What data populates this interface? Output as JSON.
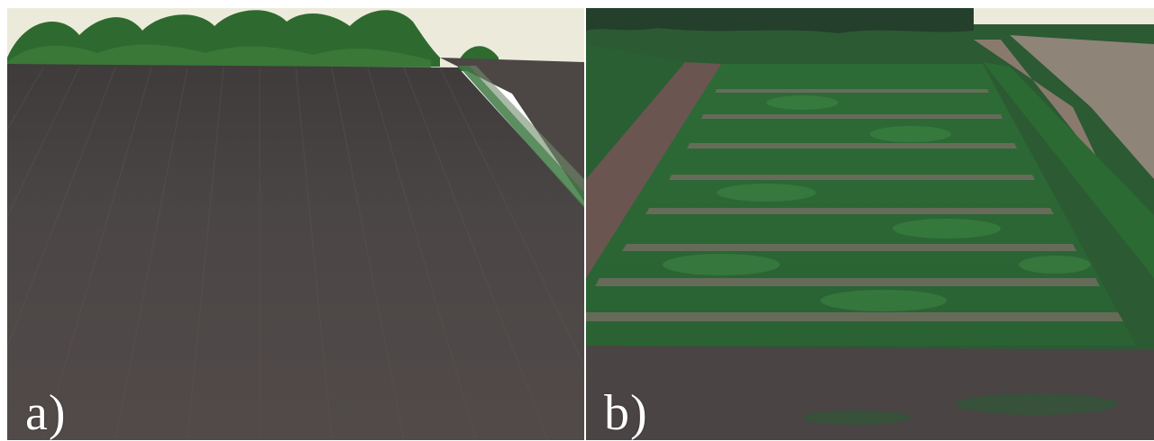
{
  "figure": {
    "panels": [
      {
        "label": "a)",
        "scene": "bare-soil-field"
      },
      {
        "label": "b)",
        "scene": "vegetated-plot-field"
      }
    ]
  },
  "colors": {
    "soil": "#4a4545",
    "soil_dark": "#3b3736",
    "sky": "#eceadb",
    "trees": "#2f6a2f",
    "crop": "#2c6b35",
    "crop_light": "#3f8a45",
    "path": "#8a7a6e"
  }
}
